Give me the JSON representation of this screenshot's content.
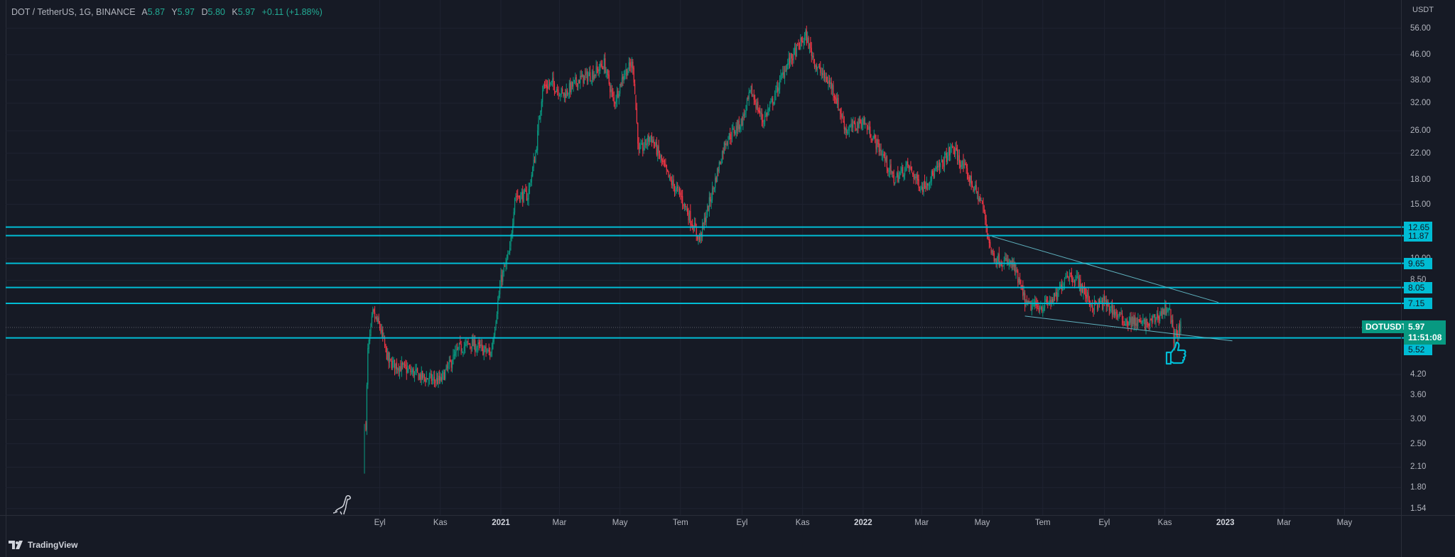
{
  "header": {
    "symbol": "DOT / TetherUS, 1G, BINANCE",
    "open_label": "A",
    "open": "5.87",
    "high_label": "Y",
    "high": "5.97",
    "low_label": "D",
    "low": "5.80",
    "close_label": "K",
    "close": "5.97",
    "change": "+0.11 (+1.88%)"
  },
  "axis_unit": "USDT",
  "branding": "TradingView",
  "colors": {
    "up": "#089981",
    "down": "#f23645",
    "level": "#00bcd4",
    "bg": "#161a25"
  },
  "chart_data": {
    "type": "candlestick",
    "title": "DOT / TetherUS, 1G, BINANCE",
    "yscale": "log",
    "ylim": [
      1.54,
      56
    ],
    "price_ticks": [
      "56.00",
      "46.00",
      "38.00",
      "32.00",
      "26.00",
      "22.00",
      "18.00",
      "15.00",
      "10.00",
      "8.50",
      "4.20",
      "3.60",
      "3.00",
      "2.50",
      "2.10",
      "1.80",
      "1.54"
    ],
    "price_tick_values": [
      56,
      46,
      38,
      32,
      26,
      22,
      18,
      15,
      10,
      8.5,
      4.2,
      3.6,
      3.0,
      2.5,
      2.1,
      1.8,
      1.54
    ],
    "time_ticks": [
      {
        "label": "Eyl",
        "date": "2020-09-01"
      },
      {
        "label": "Kas",
        "date": "2020-11-01"
      },
      {
        "label": "2021",
        "date": "2021-01-01",
        "bold": true
      },
      {
        "label": "Mar",
        "date": "2021-03-01"
      },
      {
        "label": "May",
        "date": "2021-05-01"
      },
      {
        "label": "Tem",
        "date": "2021-07-01"
      },
      {
        "label": "Eyl",
        "date": "2021-09-01"
      },
      {
        "label": "Kas",
        "date": "2021-11-01"
      },
      {
        "label": "2022",
        "date": "2022-01-01",
        "bold": true
      },
      {
        "label": "Mar",
        "date": "2022-03-01"
      },
      {
        "label": "May",
        "date": "2022-05-01"
      },
      {
        "label": "Tem",
        "date": "2022-07-01"
      },
      {
        "label": "Eyl",
        "date": "2022-09-01"
      },
      {
        "label": "Kas",
        "date": "2022-11-01"
      },
      {
        "label": "2023",
        "date": "2023-01-01",
        "bold": true
      },
      {
        "label": "Mar",
        "date": "2023-03-01"
      },
      {
        "label": "May",
        "date": "2023-05-01"
      }
    ],
    "price_path": [
      [
        "2020-08-18",
        2.9
      ],
      [
        "2020-08-20",
        5.0
      ],
      [
        "2020-08-25",
        6.6
      ],
      [
        "2020-09-01",
        6.0
      ],
      [
        "2020-09-10",
        4.6
      ],
      [
        "2020-09-25",
        4.4
      ],
      [
        "2020-10-15",
        4.1
      ],
      [
        "2020-11-01",
        4.0
      ],
      [
        "2020-11-20",
        5.1
      ],
      [
        "2020-12-01",
        5.3
      ],
      [
        "2020-12-22",
        4.9
      ],
      [
        "2021-01-01",
        8.5
      ],
      [
        "2021-01-10",
        10.5
      ],
      [
        "2021-01-15",
        16
      ],
      [
        "2021-01-28",
        16
      ],
      [
        "2021-02-05",
        22
      ],
      [
        "2021-02-12",
        36
      ],
      [
        "2021-02-22",
        37
      ],
      [
        "2021-03-05",
        34
      ],
      [
        "2021-03-20",
        38
      ],
      [
        "2021-04-05",
        40
      ],
      [
        "2021-04-15",
        43
      ],
      [
        "2021-04-25",
        32
      ],
      [
        "2021-05-05",
        40
      ],
      [
        "2021-05-14",
        43
      ],
      [
        "2021-05-20",
        22
      ],
      [
        "2021-06-01",
        25
      ],
      [
        "2021-06-20",
        18
      ],
      [
        "2021-07-01",
        16
      ],
      [
        "2021-07-20",
        11.5
      ],
      [
        "2021-08-01",
        16
      ],
      [
        "2021-08-15",
        24
      ],
      [
        "2021-09-01",
        28
      ],
      [
        "2021-09-10",
        35
      ],
      [
        "2021-09-22",
        28
      ],
      [
        "2021-10-01",
        32
      ],
      [
        "2021-10-15",
        42
      ],
      [
        "2021-11-04",
        53
      ],
      [
        "2021-11-15",
        42
      ],
      [
        "2021-12-01",
        36
      ],
      [
        "2021-12-15",
        26
      ],
      [
        "2022-01-01",
        28
      ],
      [
        "2022-01-20",
        22
      ],
      [
        "2022-02-01",
        18
      ],
      [
        "2022-02-15",
        20
      ],
      [
        "2022-03-01",
        17
      ],
      [
        "2022-03-20",
        20
      ],
      [
        "2022-04-01",
        23
      ],
      [
        "2022-04-15",
        19
      ],
      [
        "2022-05-01",
        15
      ],
      [
        "2022-05-10",
        10.5
      ],
      [
        "2022-05-15",
        10
      ],
      [
        "2022-06-01",
        9.5
      ],
      [
        "2022-06-15",
        7
      ],
      [
        "2022-07-01",
        7
      ],
      [
        "2022-07-15",
        7.5
      ],
      [
        "2022-07-25",
        9
      ],
      [
        "2022-08-05",
        8.5
      ],
      [
        "2022-08-20",
        7
      ],
      [
        "2022-09-01",
        7.2
      ],
      [
        "2022-09-20",
        6.3
      ],
      [
        "2022-10-15",
        6.1
      ],
      [
        "2022-11-05",
        7.0
      ],
      [
        "2022-11-10",
        5.5
      ],
      [
        "2022-11-17",
        5.97
      ]
    ],
    "levels": [
      {
        "value": 12.65,
        "label": "12.65"
      },
      {
        "value": 11.87,
        "label": "11.87"
      },
      {
        "value": 9.65,
        "label": "9.65"
      },
      {
        "value": 8.05,
        "label": "8.05"
      },
      {
        "value": 7.15,
        "label": "7.15"
      },
      {
        "value": 5.52,
        "label": "5.52"
      }
    ],
    "trendlines": [
      {
        "from": [
          "2022-05-11",
          11.8
        ],
        "to": [
          "2022-12-25",
          7.2
        ]
      },
      {
        "from": [
          "2022-06-13",
          6.5
        ],
        "to": [
          "2023-01-08",
          5.4
        ]
      }
    ],
    "current": {
      "symbol": "DOTUSDT",
      "price": "5.97",
      "countdown": "11:51:08",
      "value": 5.97
    }
  }
}
